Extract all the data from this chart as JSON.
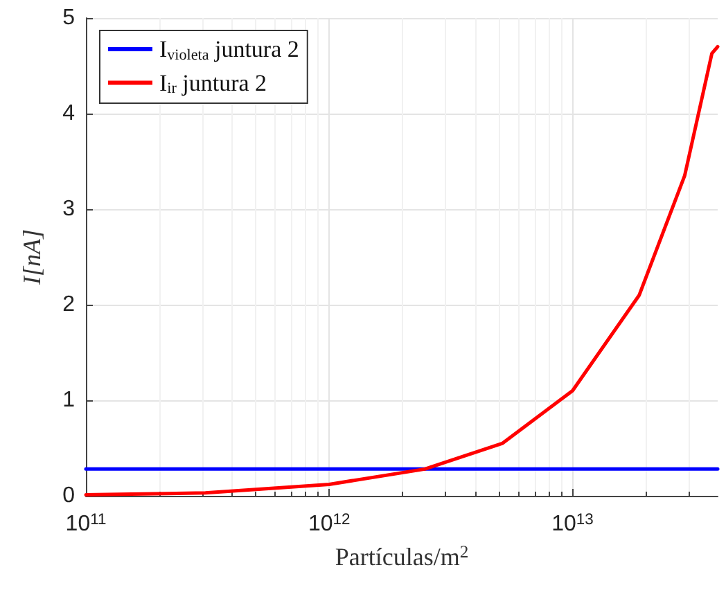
{
  "chart_data": {
    "type": "line",
    "xlabel": "Partículas/m$^{2}$",
    "ylabel": "I[nA]",
    "log": "x",
    "grid": true,
    "legend": "top left",
    "marker": "none",
    "line_style": "solid",
    "xlim": [
      100000000000.0,
      39500000000000.0
    ],
    "xticks": [
      {
        "value": 100000000000.0,
        "label": "10$^{11}$"
      },
      {
        "value": 1000000000000.0,
        "label": "10$^{12}$"
      },
      {
        "value": 10000000000000.0,
        "label": "10$^{13}$"
      }
    ],
    "ylim": [
      0,
      5
    ],
    "yticks": [
      0,
      1,
      2,
      3,
      4,
      5
    ],
    "series": [
      {
        "name": "I$_{violeta}$ juntura 2",
        "color": "#0000ff",
        "x": [
          100000000000.0,
          39500000000000.0
        ],
        "values": [
          0.28,
          0.28
        ]
      },
      {
        "name": "I$_{ir}$ juntura 2",
        "color": "#ff0000",
        "x": [
          100000000000.0,
          310000000000.0,
          1000000000000.0,
          2470000000000.0,
          5160000000000.0,
          10000000000000.0,
          18800000000000.0,
          28900000000000.0,
          37400000000000.0,
          39500000000000.0
        ],
        "values": [
          0.01,
          0.03,
          0.12,
          0.28,
          0.55,
          1.1,
          2.1,
          3.35,
          4.63,
          4.7
        ]
      }
    ]
  }
}
